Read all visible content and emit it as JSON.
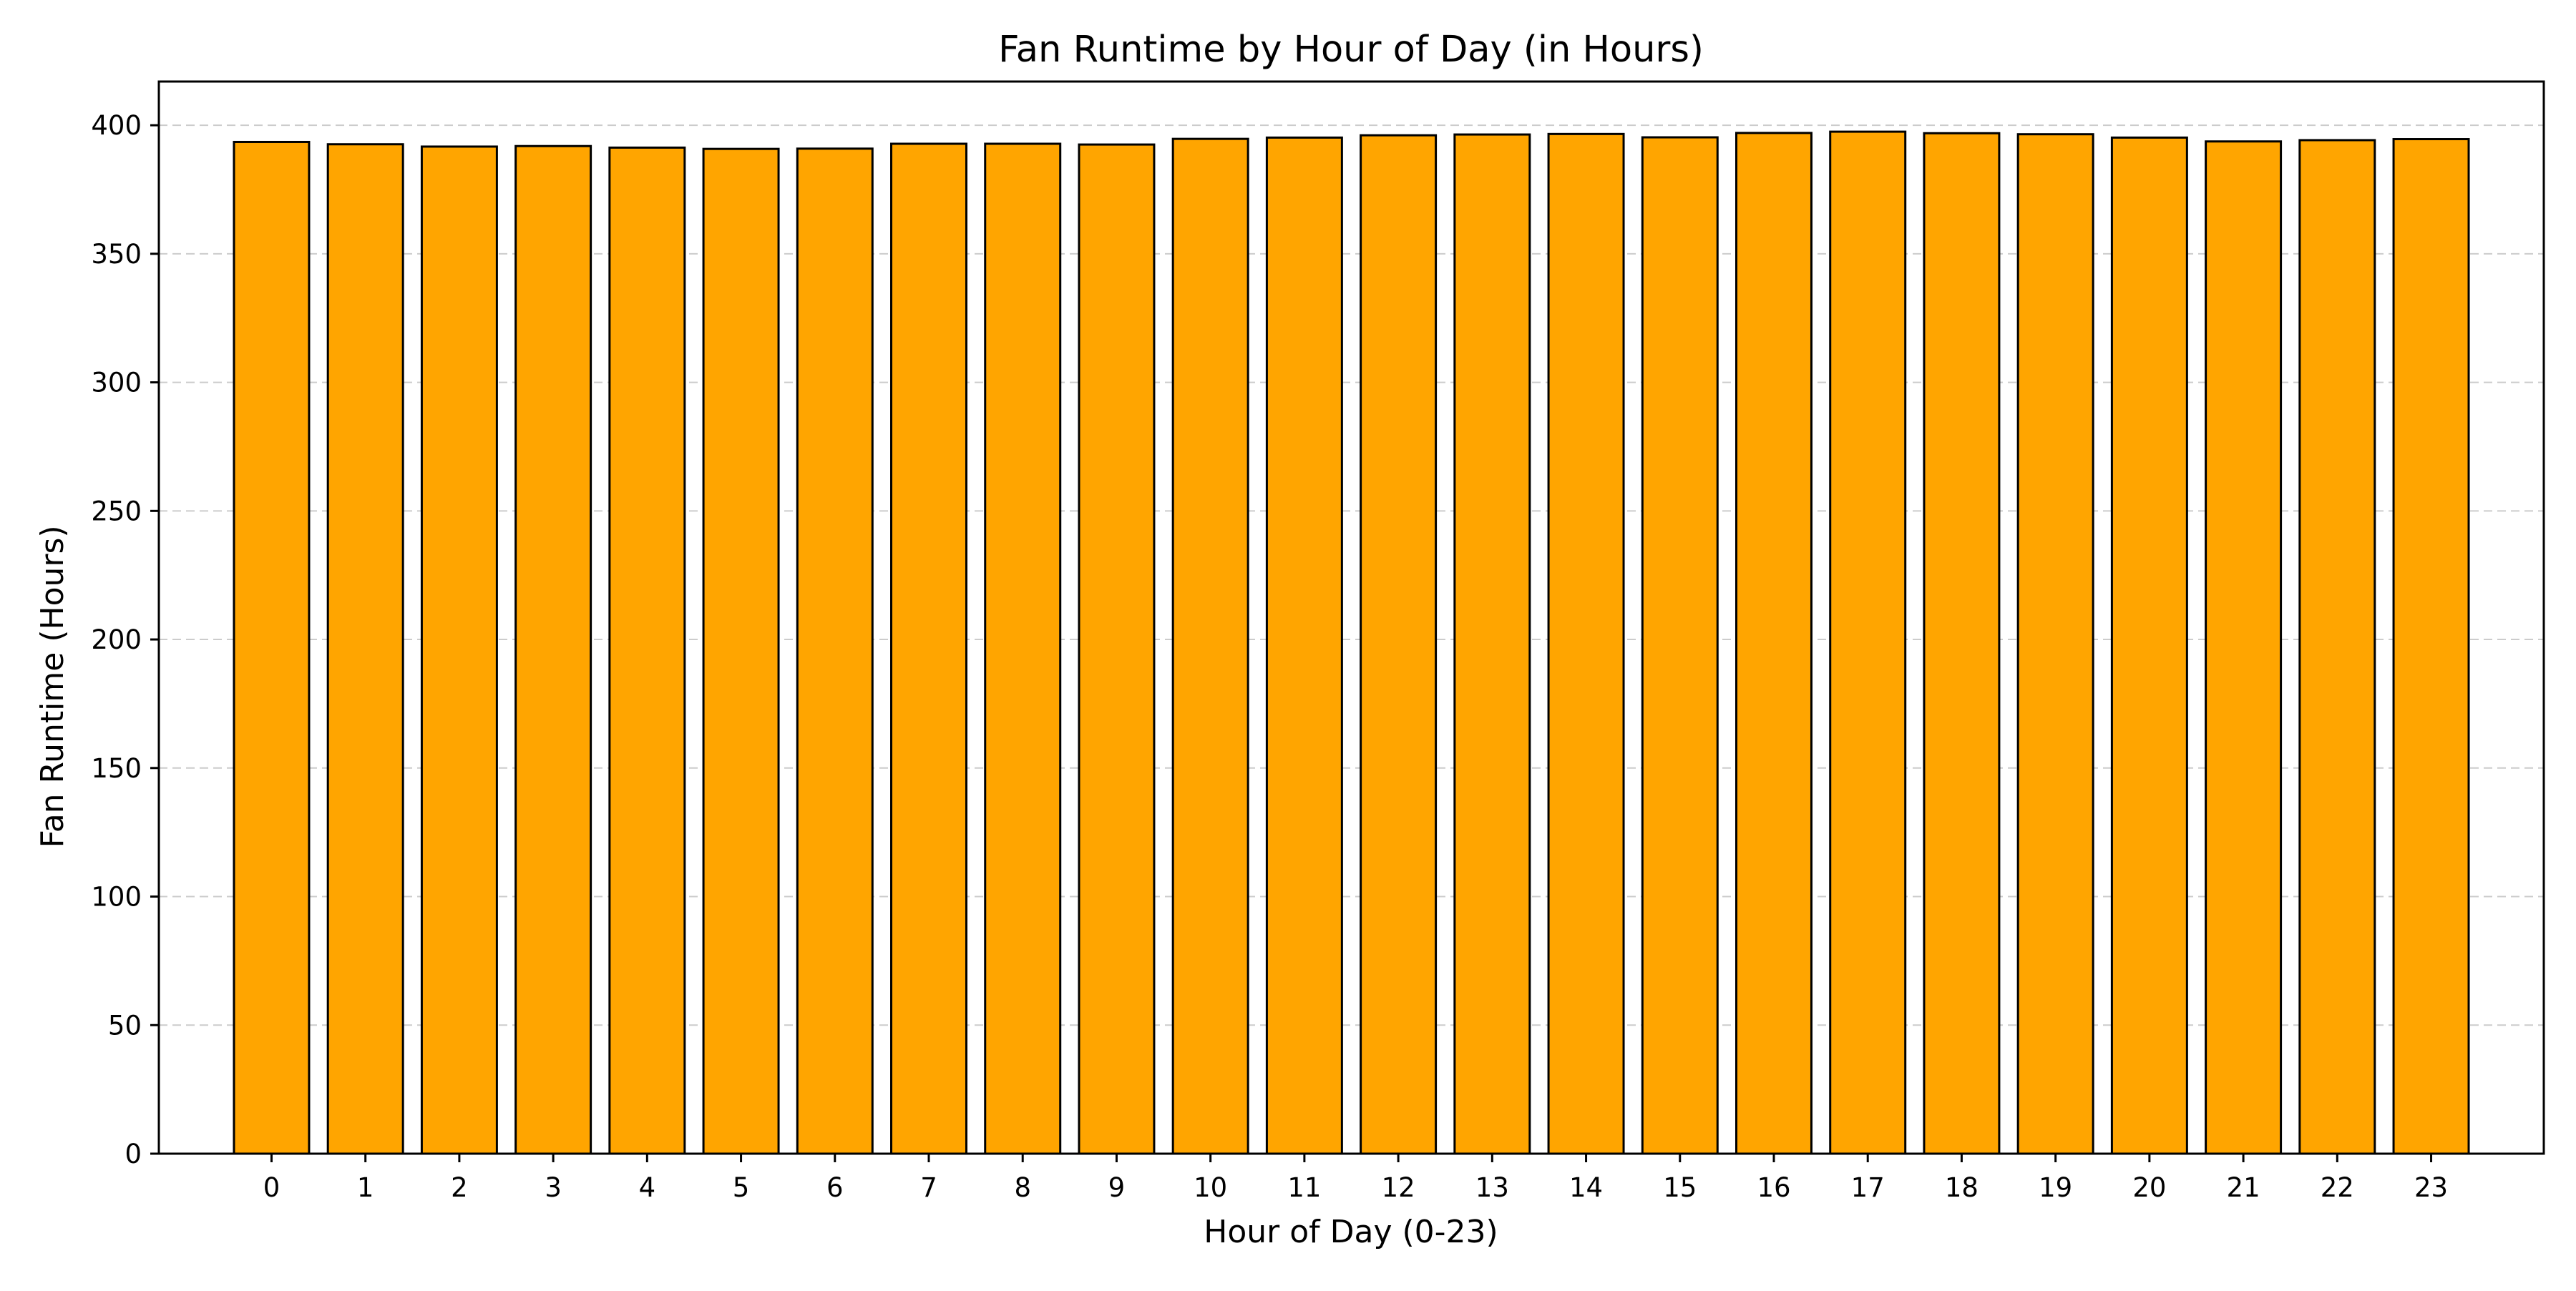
{
  "chart_data": {
    "type": "bar",
    "title": "Fan Runtime by Hour of Day (in Hours)",
    "xlabel": "Hour of Day (0-23)",
    "ylabel": "Fan Runtime (Hours)",
    "categories": [
      "0",
      "1",
      "2",
      "3",
      "4",
      "5",
      "6",
      "7",
      "8",
      "9",
      "10",
      "11",
      "12",
      "13",
      "14",
      "15",
      "16",
      "17",
      "18",
      "19",
      "20",
      "21",
      "22",
      "23"
    ],
    "values": [
      393.5,
      392.6,
      391.7,
      391.9,
      391.3,
      390.8,
      390.9,
      392.8,
      392.8,
      392.5,
      394.7,
      395.2,
      396.1,
      396.4,
      396.6,
      395.3,
      397.0,
      397.5,
      396.9,
      396.5,
      395.2,
      393.7,
      394.2,
      394.6
    ],
    "yticks": [
      0,
      50,
      100,
      150,
      200,
      250,
      300,
      350,
      400
    ],
    "ylim": [
      0,
      417
    ],
    "grid": "y-dashed",
    "colors": {
      "bar_fill": "#FFA500",
      "bar_edge": "#000000",
      "grid": "#cccccc",
      "axes": "#000000"
    }
  }
}
